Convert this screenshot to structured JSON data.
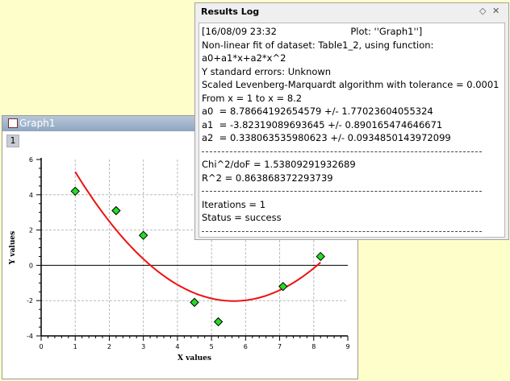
{
  "graph_window": {
    "title": "Graph1",
    "layer_label": "1"
  },
  "results_log": {
    "title": "Results Log",
    "controls": [
      "◇",
      "✕"
    ],
    "header_time": "[16/08/09 23:32",
    "header_plot": "Plot: ''Graph1'']",
    "lines": [
      "Non-linear fit of dataset: Table1_2, using function:",
      "a0+a1*x+a2*x^2",
      "Y standard errors: Unknown",
      "Scaled Levenberg-Marquardt algorithm with tolerance = 0.0001",
      "From x = 1 to x = 8.2",
      "a0  = 8.78664192654579 +/- 1.77023604055324",
      "a1  = -3.82319089693645 +/- 0.890165474646671",
      "a2  = 0.338063535980623 +/- 0.0934850143972099"
    ],
    "stats_lines": [
      "Chi^2/doF = 1.53809291932689",
      "R^2 = 0.863868372293739"
    ],
    "result_lines": [
      "Iterations = 1",
      "Status = success"
    ]
  },
  "chart_data": {
    "type": "scatter",
    "xlabel": "X values",
    "ylabel": "Y values",
    "xlim": [
      0,
      9
    ],
    "ylim": [
      -4,
      6
    ],
    "x_ticks": [
      0,
      1,
      2,
      3,
      4,
      5,
      6,
      7,
      8,
      9
    ],
    "y_ticks": [
      -4,
      -2,
      0,
      2,
      4,
      6
    ],
    "grid": true,
    "points": [
      {
        "x": 1.0,
        "y": 4.2
      },
      {
        "x": 2.2,
        "y": 3.1
      },
      {
        "x": 3.0,
        "y": 1.7
      },
      {
        "x": 4.5,
        "y": -2.1
      },
      {
        "x": 5.2,
        "y": -3.2
      },
      {
        "x": 7.1,
        "y": -1.2
      },
      {
        "x": 8.2,
        "y": 0.5
      }
    ],
    "fit": {
      "a0": 8.78664192654579,
      "a1": -3.82319089693645,
      "a2": 0.338063535980623,
      "x_from": 1,
      "x_to": 8.2
    },
    "colors": {
      "points": "#22dd22",
      "fit": "#ee1111",
      "grid": "#b9b9b9"
    }
  }
}
